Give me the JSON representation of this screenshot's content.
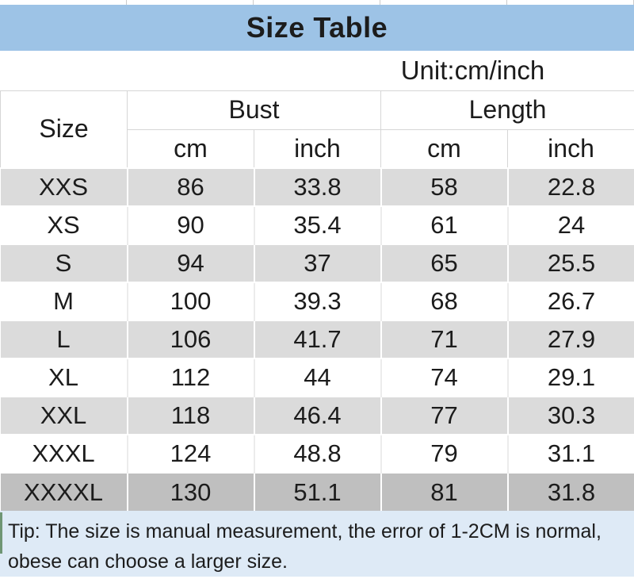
{
  "title": "Size Table",
  "unit_label": "Unit:cm/inch",
  "table": {
    "size_header": "Size",
    "groups": [
      {
        "label": "Bust",
        "subheaders": [
          "cm",
          "inch"
        ]
      },
      {
        "label": "Length",
        "subheaders": [
          "cm",
          "inch"
        ]
      }
    ],
    "rows": [
      {
        "size": "XXS",
        "values": [
          "86",
          "33.8",
          "58",
          "22.8"
        ]
      },
      {
        "size": "XS",
        "values": [
          "90",
          "35.4",
          "61",
          "24"
        ]
      },
      {
        "size": "S",
        "values": [
          "94",
          "37",
          "65",
          "25.5"
        ]
      },
      {
        "size": "M",
        "values": [
          "100",
          "39.3",
          "68",
          "26.7"
        ]
      },
      {
        "size": "L",
        "values": [
          "106",
          "41.7",
          "71",
          "27.9"
        ]
      },
      {
        "size": "XL",
        "values": [
          "112",
          "44",
          "74",
          "29.1"
        ]
      },
      {
        "size": "XXL",
        "values": [
          "118",
          "46.4",
          "77",
          "30.3"
        ]
      },
      {
        "size": "XXXL",
        "values": [
          "124",
          "48.8",
          "79",
          "31.1"
        ]
      },
      {
        "size": "XXXXL",
        "values": [
          "130",
          "51.1",
          "81",
          "31.8"
        ]
      }
    ]
  },
  "tip": {
    "line1": "Tip: The size is manual measurement, the error of 1-2CM is normal,",
    "line2": "obese can choose a larger size."
  },
  "colors": {
    "banner_bg": "#9DC3E6",
    "row_alt_bg": "#DBDBDB",
    "row_last_bg": "#BFBFBF",
    "tip_bg": "#DEEAF6",
    "text": "#1c1c1c"
  }
}
